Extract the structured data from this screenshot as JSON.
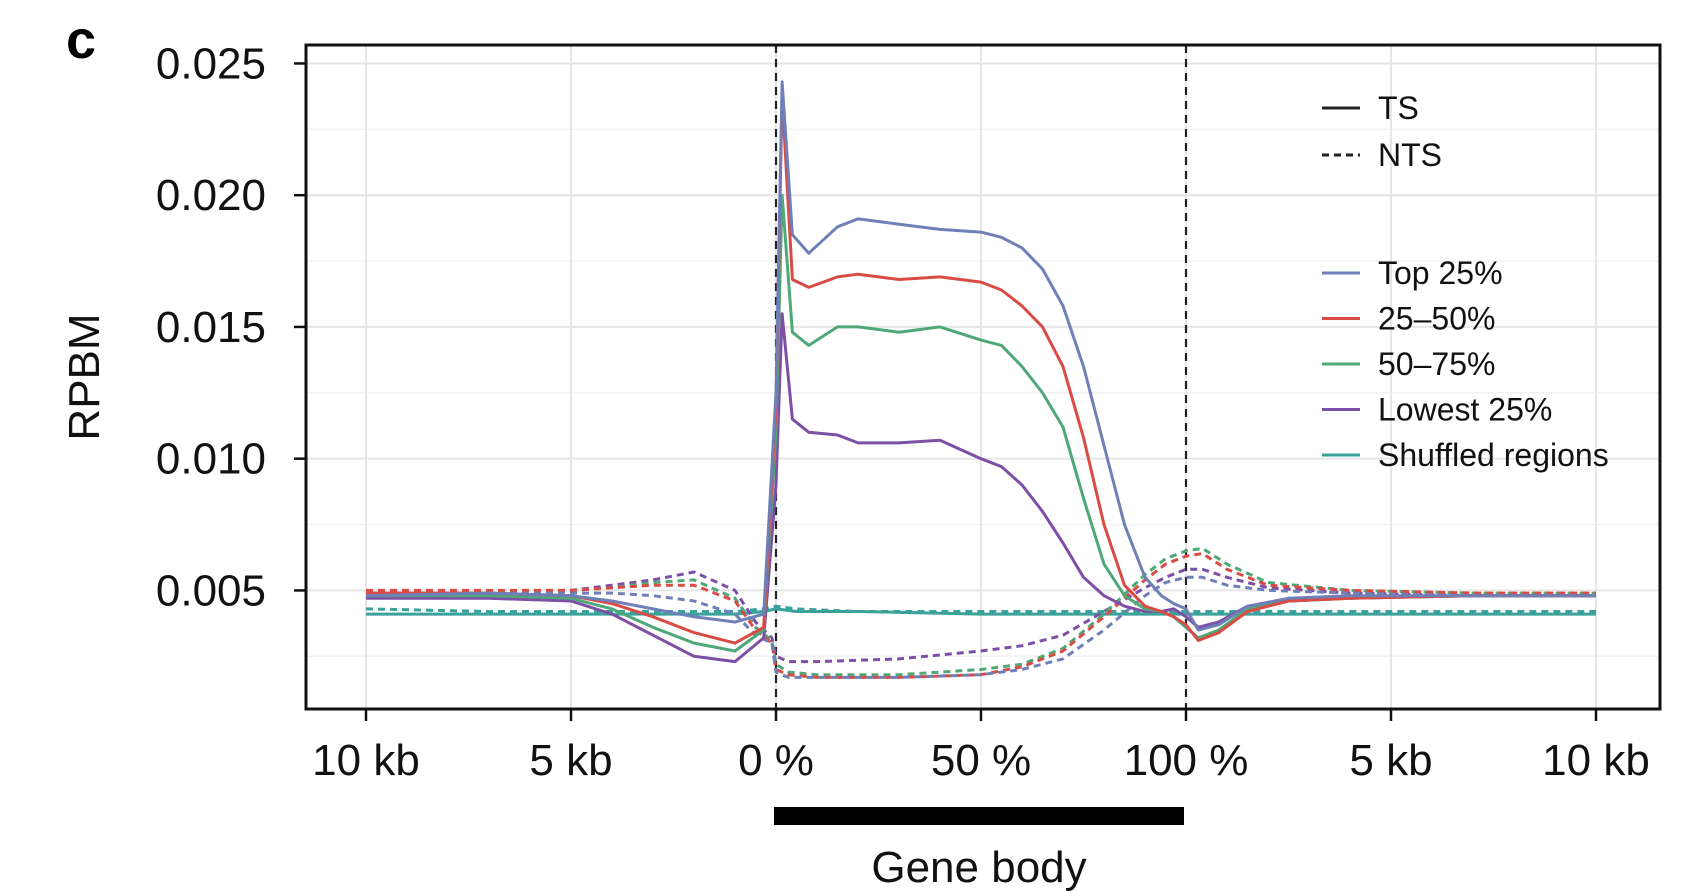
{
  "panel_label": "c",
  "chart_data": {
    "type": "line",
    "ylabel": "RPBM",
    "xlabel": "Gene body",
    "ylim": [
      0.0005,
      0.0257
    ],
    "y_ticks": [
      0.005,
      0.01,
      0.015,
      0.02,
      0.025
    ],
    "y_tick_labels": [
      "0.005",
      "0.010",
      "0.015",
      "0.020",
      "0.025"
    ],
    "x_domain": [
      -10,
      20
    ],
    "x_ticks": [
      -10,
      -5,
      0,
      5,
      10,
      15,
      20
    ],
    "x_tick_labels": [
      "10 kb",
      "5 kb",
      "0 %",
      "50 %",
      "100 %",
      "5 kb",
      "10 kb"
    ],
    "x_axis_note": "x in 10-point units per segment: upstream (-10..0 kb), gene body (0..100 %), downstream (0..10 kb)",
    "vlines": [
      0,
      10
    ],
    "gene_body_bar": [
      0,
      10
    ],
    "grid": true,
    "legend_position": "top-right",
    "legend": {
      "strands": [
        {
          "label": "TS",
          "dash": false
        },
        {
          "label": "NTS",
          "dash": true
        }
      ],
      "groups": [
        {
          "label": "Top 25%",
          "color": "#6f80b8"
        },
        {
          "label": "25–50%",
          "color": "#d94c45"
        },
        {
          "label": "50–75%",
          "color": "#4fa877"
        },
        {
          "label": "Lowest 25%",
          "color": "#7d4fa6"
        },
        {
          "label": "Shuffled regions",
          "color": "#3aa19b"
        }
      ]
    },
    "series": [
      {
        "name": "Top 25%",
        "strand": "TS",
        "color": "#6f80b8",
        "x": [
          -10,
          -7,
          -5,
          -4,
          -3,
          -2,
          -1,
          -0.3,
          0,
          0.15,
          0.4,
          0.8,
          1.5,
          2,
          3,
          4,
          5,
          5.5,
          6,
          6.5,
          7,
          7.5,
          8,
          8.5,
          9,
          9.4,
          9.7,
          10,
          10.3,
          10.8,
          11.5,
          12.5,
          14,
          17,
          20
        ],
        "y": [
          0.0048,
          0.0049,
          0.0048,
          0.0046,
          0.0043,
          0.004,
          0.0038,
          0.0041,
          0.0125,
          0.0243,
          0.0185,
          0.0178,
          0.0188,
          0.0191,
          0.0189,
          0.0187,
          0.0186,
          0.0184,
          0.018,
          0.0172,
          0.0158,
          0.0135,
          0.0105,
          0.0075,
          0.0055,
          0.0048,
          0.0045,
          0.0043,
          0.0035,
          0.0037,
          0.0044,
          0.0047,
          0.0048,
          0.0048,
          0.0048
        ]
      },
      {
        "name": "25–50%",
        "strand": "TS",
        "color": "#d94c45",
        "x": [
          -10,
          -7,
          -5,
          -4,
          -3,
          -2,
          -1,
          -0.3,
          0,
          0.15,
          0.4,
          0.8,
          1.5,
          2,
          3,
          4,
          5,
          5.5,
          6,
          6.5,
          7,
          7.5,
          8,
          8.5,
          9,
          9.4,
          9.7,
          10,
          10.3,
          10.8,
          11.5,
          12.5,
          14,
          17,
          20
        ],
        "y": [
          0.0049,
          0.0049,
          0.0048,
          0.0045,
          0.004,
          0.0034,
          0.003,
          0.0036,
          0.012,
          0.0238,
          0.0168,
          0.0165,
          0.0169,
          0.017,
          0.0168,
          0.0169,
          0.0167,
          0.0164,
          0.0158,
          0.015,
          0.0135,
          0.0108,
          0.0075,
          0.0052,
          0.0044,
          0.0042,
          0.004,
          0.0037,
          0.0031,
          0.0034,
          0.0042,
          0.0046,
          0.0047,
          0.0048,
          0.0048
        ]
      },
      {
        "name": "50–75%",
        "strand": "TS",
        "color": "#4fa877",
        "x": [
          -10,
          -7,
          -5,
          -4,
          -3,
          -2,
          -1,
          -0.3,
          0,
          0.15,
          0.4,
          0.8,
          1.5,
          2,
          3,
          4,
          5,
          5.5,
          6,
          6.5,
          7,
          7.5,
          8,
          8.5,
          9,
          9.4,
          9.7,
          10,
          10.3,
          10.8,
          11.5,
          12.5,
          14,
          17,
          20
        ],
        "y": [
          0.0048,
          0.0048,
          0.0047,
          0.0043,
          0.0036,
          0.003,
          0.0027,
          0.0035,
          0.011,
          0.02,
          0.0148,
          0.0143,
          0.015,
          0.015,
          0.0148,
          0.015,
          0.0145,
          0.0143,
          0.0135,
          0.0125,
          0.0112,
          0.0085,
          0.006,
          0.0048,
          0.0043,
          0.0042,
          0.004,
          0.0036,
          0.0032,
          0.0035,
          0.0043,
          0.0046,
          0.0047,
          0.0048,
          0.0048
        ]
      },
      {
        "name": "Lowest 25%",
        "strand": "TS",
        "color": "#7d4fa6",
        "x": [
          -10,
          -7,
          -5,
          -4,
          -3,
          -2,
          -1,
          -0.3,
          0,
          0.15,
          0.4,
          0.8,
          1.5,
          2,
          3,
          4,
          5,
          5.5,
          6,
          6.5,
          7,
          7.5,
          8,
          8.5,
          9,
          9.4,
          9.7,
          10,
          10.3,
          10.8,
          11.5,
          12.5,
          14,
          17,
          20
        ],
        "y": [
          0.0047,
          0.0047,
          0.0046,
          0.0041,
          0.0033,
          0.0025,
          0.0023,
          0.0032,
          0.009,
          0.0155,
          0.0115,
          0.011,
          0.0109,
          0.0106,
          0.0106,
          0.0107,
          0.01,
          0.0097,
          0.009,
          0.008,
          0.0068,
          0.0055,
          0.0048,
          0.0044,
          0.0042,
          0.0042,
          0.0043,
          0.004,
          0.0036,
          0.0038,
          0.0044,
          0.0046,
          0.0047,
          0.0048,
          0.0048
        ]
      },
      {
        "name": "Top 25%",
        "strand": "NTS",
        "color": "#6f80b8",
        "x": [
          -10,
          -6,
          -5,
          -4,
          -3,
          -2,
          -1,
          -0.5,
          -0.1,
          0,
          0.3,
          1,
          3,
          5,
          6,
          7,
          8,
          9,
          9.5,
          10,
          10.4,
          11,
          12,
          14,
          17,
          20
        ],
        "y": [
          0.0048,
          0.0049,
          0.0049,
          0.0049,
          0.0048,
          0.0046,
          0.0041,
          0.0033,
          0.003,
          0.0019,
          0.0017,
          0.0017,
          0.0017,
          0.0018,
          0.002,
          0.0024,
          0.0035,
          0.0048,
          0.0053,
          0.0055,
          0.0055,
          0.0052,
          0.005,
          0.0049,
          0.0048,
          0.0048
        ]
      },
      {
        "name": "25–50%",
        "strand": "NTS",
        "color": "#d94c45",
        "x": [
          -10,
          -6,
          -5,
          -4,
          -3,
          -2,
          -1,
          -0.5,
          -0.1,
          0,
          0.3,
          1,
          3,
          5,
          6,
          7,
          8,
          9,
          9.5,
          10,
          10.4,
          11,
          12,
          14,
          17,
          20
        ],
        "y": [
          0.005,
          0.005,
          0.005,
          0.0051,
          0.0052,
          0.0052,
          0.0046,
          0.0035,
          0.003,
          0.002,
          0.0018,
          0.0017,
          0.0017,
          0.0018,
          0.0021,
          0.0027,
          0.004,
          0.0054,
          0.006,
          0.0063,
          0.0064,
          0.0058,
          0.0052,
          0.005,
          0.0049,
          0.0049
        ]
      },
      {
        "name": "50–75%",
        "strand": "NTS",
        "color": "#4fa877",
        "x": [
          -10,
          -6,
          -5,
          -4,
          -3,
          -2,
          -1,
          -0.5,
          -0.1,
          0,
          0.3,
          1,
          3,
          5,
          6,
          7,
          8,
          9,
          9.5,
          10,
          10.4,
          11,
          12,
          14,
          17,
          20
        ],
        "y": [
          0.0049,
          0.005,
          0.005,
          0.0051,
          0.0053,
          0.0054,
          0.0047,
          0.0036,
          0.0031,
          0.0022,
          0.0019,
          0.0018,
          0.0018,
          0.002,
          0.0022,
          0.0028,
          0.0041,
          0.0056,
          0.0062,
          0.0065,
          0.0066,
          0.006,
          0.0053,
          0.005,
          0.0049,
          0.0049
        ]
      },
      {
        "name": "Lowest 25%",
        "strand": "NTS",
        "color": "#7d4fa6",
        "x": [
          -10,
          -6,
          -5,
          -4,
          -3,
          -2,
          -1,
          -0.5,
          -0.1,
          0,
          0.3,
          1,
          3,
          5,
          6,
          7,
          8,
          9,
          9.5,
          10,
          10.4,
          11,
          12,
          14,
          17,
          20
        ],
        "y": [
          0.0048,
          0.0049,
          0.005,
          0.0052,
          0.0054,
          0.0057,
          0.005,
          0.0038,
          0.0032,
          0.0025,
          0.0023,
          0.0023,
          0.0024,
          0.0027,
          0.0029,
          0.0033,
          0.0042,
          0.0051,
          0.0055,
          0.0058,
          0.0058,
          0.0055,
          0.0051,
          0.0049,
          0.0048,
          0.0048
        ]
      },
      {
        "name": "Shuffled regions",
        "strand": "TS",
        "color": "#3aa19b",
        "x": [
          -10,
          -7,
          -5,
          -3,
          -1,
          -0.3,
          0,
          0.5,
          2,
          5,
          8,
          9.7,
          10,
          10.5,
          12,
          15,
          20
        ],
        "y": [
          0.0041,
          0.0041,
          0.0041,
          0.0041,
          0.0041,
          0.0042,
          0.0043,
          0.0042,
          0.0042,
          0.0041,
          0.0041,
          0.0041,
          0.0041,
          0.0041,
          0.0041,
          0.0041,
          0.0041
        ]
      },
      {
        "name": "Shuffled regions",
        "strand": "NTS",
        "color": "#3aa19b",
        "x": [
          -10,
          -7,
          -5,
          -3,
          -1,
          -0.3,
          0,
          0.5,
          2,
          5,
          8,
          9.7,
          10,
          10.5,
          12,
          15,
          20
        ],
        "y": [
          0.0043,
          0.0042,
          0.0042,
          0.0042,
          0.0042,
          0.0043,
          0.0044,
          0.0043,
          0.0042,
          0.0042,
          0.0042,
          0.0042,
          0.0042,
          0.0042,
          0.0042,
          0.0042,
          0.0042
        ]
      }
    ]
  }
}
